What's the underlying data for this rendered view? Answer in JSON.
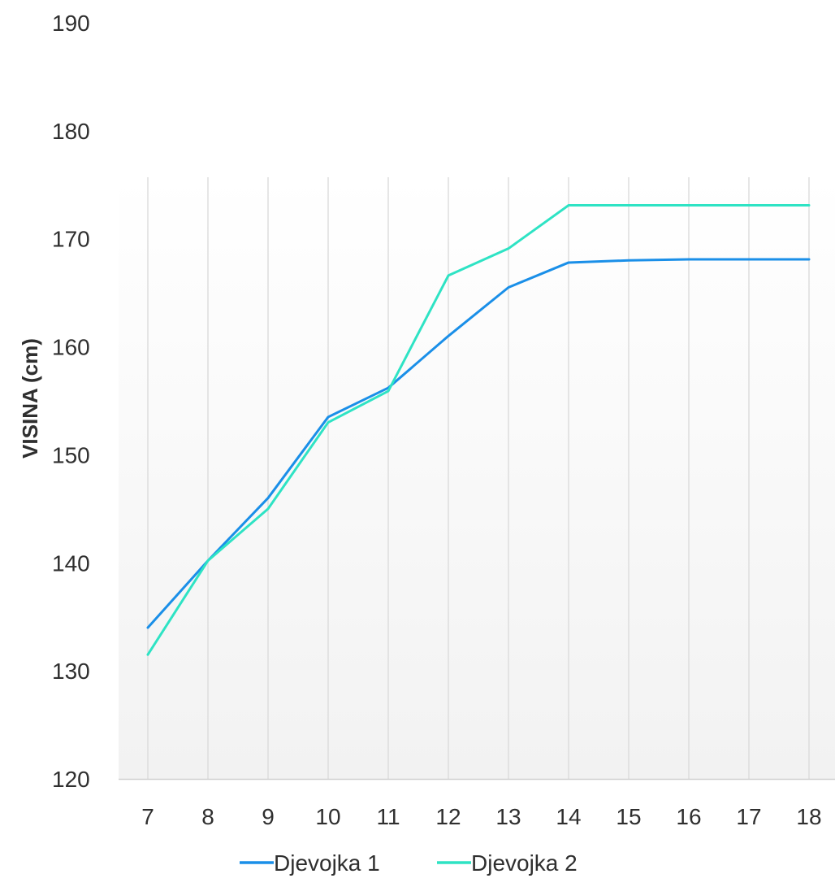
{
  "chart_data": {
    "type": "line",
    "title": "",
    "xlabel": "",
    "ylabel": "VISINA (cm)",
    "x": [
      7,
      8,
      9,
      10,
      11,
      12,
      13,
      14,
      15,
      16,
      17,
      18
    ],
    "yticks": [
      120,
      130,
      140,
      150,
      160,
      170,
      180,
      190
    ],
    "ylim": [
      120,
      190
    ],
    "grid": "vertical",
    "legend_position": "bottom",
    "series": [
      {
        "name": "Djevojka 1",
        "color": "#1a8fe8",
        "values": [
          134.0,
          140.2,
          146.0,
          153.5,
          156.2,
          161.0,
          165.5,
          167.8,
          168.0,
          168.1,
          168.1,
          168.1
        ]
      },
      {
        "name": "Djevojka 2",
        "color": "#2ee3c4",
        "values": [
          131.5,
          140.2,
          145.0,
          153.0,
          155.9,
          166.6,
          169.1,
          173.1,
          173.1,
          173.1,
          173.1,
          173.1
        ]
      }
    ]
  }
}
